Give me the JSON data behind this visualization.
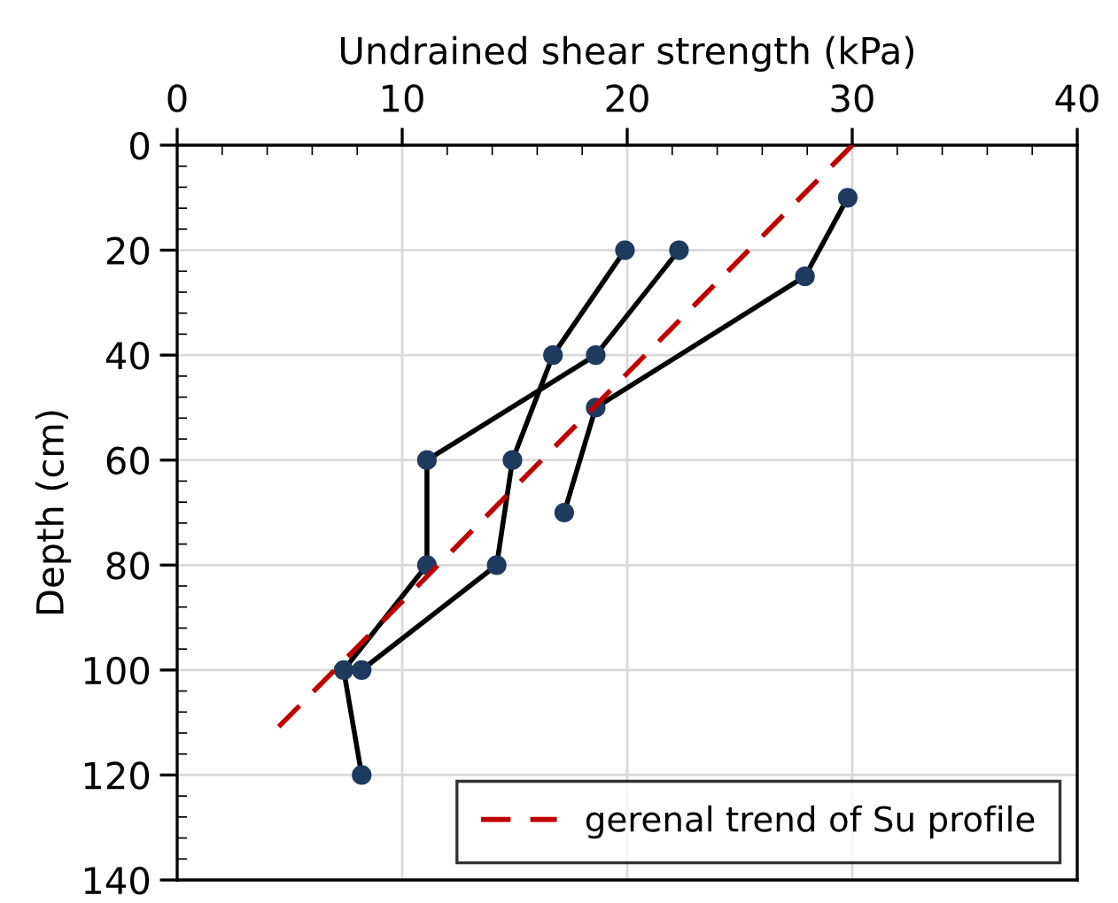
{
  "chart_data": {
    "type": "line",
    "xlabel": "Undrained shear strength (kPa)",
    "ylabel": "Depth (cm)",
    "xlim": [
      0,
      40
    ],
    "xticks": [
      0,
      10,
      20,
      30,
      40
    ],
    "ylim": [
      140,
      0
    ],
    "yticks": [
      0,
      20,
      40,
      60,
      80,
      100,
      120,
      140
    ],
    "grid": true,
    "legend": "bottom right",
    "marker": "circle",
    "line_style": "solid",
    "series": [
      {
        "x": [
          29.8,
          27.9,
          18.6,
          17.2
        ],
        "values": [
          10,
          25,
          50,
          70
        ],
        "color": "#1f3a5f"
      },
      {
        "x": [
          19.9,
          16.7,
          14.9,
          14.2,
          8.2
        ],
        "values": [
          20,
          40,
          60,
          80,
          100
        ],
        "color": "#1f3a5f"
      },
      {
        "x": [
          22.3,
          18.6,
          11.1,
          11.1,
          7.4,
          8.2
        ],
        "values": [
          20,
          40,
          60,
          80,
          100,
          120
        ],
        "color": "#1f3a5f"
      },
      {
        "name": "gerenal trend of Su profile",
        "x": [
          30,
          4.4
        ],
        "values": [
          0,
          111.3
        ],
        "color": "#c00000",
        "marker": "none",
        "line_style": "dashed"
      }
    ]
  }
}
